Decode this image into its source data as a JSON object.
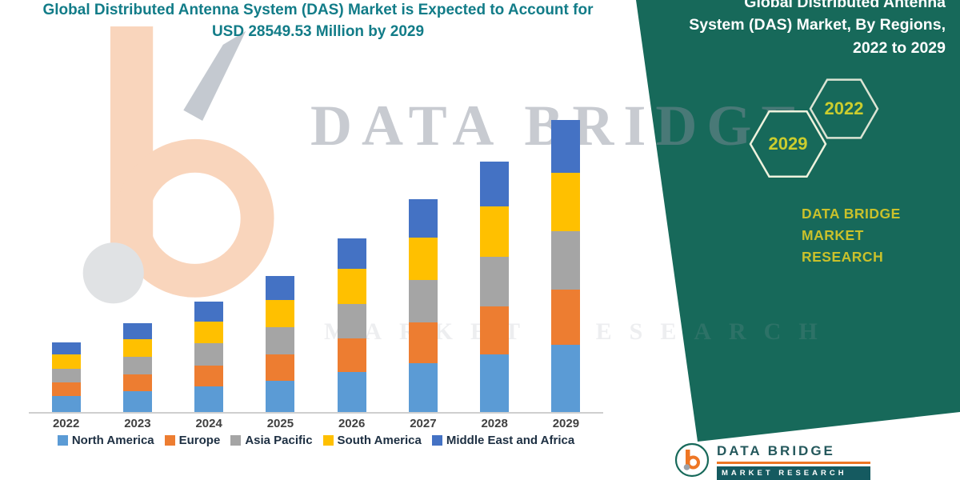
{
  "header": {
    "title_line1": "Global Distributed Antenna System (DAS) Market is Expected to Account for",
    "title_line2": "USD 28549.53 Million by 2029"
  },
  "panel": {
    "heading_line1": "Global Distributed Antenna",
    "heading_line2": "System (DAS) Market, By Regions,",
    "heading_line3": "2022 to 2029",
    "hex_back_year": "2022",
    "hex_front_year": "2029",
    "brand_line1": "DATA BRIDGE MARKET",
    "brand_line2": "RESEARCH"
  },
  "watermark": {
    "line1": "DATA BRIDGE",
    "line2": "MARKET RESEARCH"
  },
  "footer": {
    "brand": "DATA BRIDGE",
    "sub": "MARKET RESEARCH"
  },
  "colors": {
    "panel_teal": "#17695a",
    "title_teal": "#127c88",
    "brand_yellow": "#c9c12b",
    "hex_year_yellow": "#cbcd2e",
    "logo_orange": "#ee7624",
    "axis_text": "#404040",
    "legend_text": "#1d2f42"
  },
  "chart_data": {
    "type": "bar",
    "stacked": true,
    "title": "Global Distributed Antenna System (DAS) Market, By Regions, 2022 to 2029",
    "unit": "USD Million",
    "xlabel": "",
    "ylabel": "",
    "ylim": [
      0,
      30000
    ],
    "grid": false,
    "legend_position": "bottom",
    "categories": [
      "2022",
      "2023",
      "2024",
      "2025",
      "2026",
      "2027",
      "2028",
      "2029"
    ],
    "series": [
      {
        "name": "North America",
        "color": "#5B9BD5",
        "values": [
          1580,
          2010,
          2500,
          3070,
          3930,
          4800,
          5650,
          6580
        ]
      },
      {
        "name": "Europe",
        "color": "#ED7D31",
        "values": [
          1300,
          1660,
          2060,
          2540,
          3240,
          3960,
          4660,
          5430
        ]
      },
      {
        "name": "Asia Pacific",
        "color": "#A5A5A5",
        "values": [
          1360,
          1740,
          2160,
          2660,
          3400,
          4160,
          4900,
          5710
        ]
      },
      {
        "name": "South America",
        "color": "#FFC000",
        "values": [
          1360,
          1740,
          2160,
          2660,
          3400,
          4160,
          4900,
          5710
        ]
      },
      {
        "name": "Middle East and Africa",
        "color": "#4472C4",
        "values": [
          1200,
          1550,
          1920,
          2370,
          3030,
          3720,
          4390,
          5119.53
        ]
      }
    ],
    "totals": [
      6800,
      8700,
      10800,
      13300,
      17000,
      20800,
      24500,
      28549.53
    ]
  }
}
